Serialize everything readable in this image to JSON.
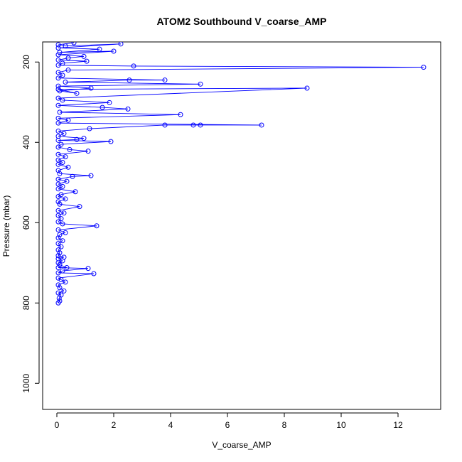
{
  "chart_data": {
    "type": "line",
    "title": "ATOM2 Southbound V_coarse_AMP",
    "xlabel": "V_coarse_AMP",
    "ylabel": "Pressure (mbar)",
    "xlim": [
      -0.5,
      13.5
    ],
    "ylim": [
      1065,
      150
    ],
    "y_reversed": true,
    "x_ticks": [
      0,
      2,
      4,
      6,
      8,
      10,
      12
    ],
    "y_ticks": [
      200,
      400,
      600,
      800,
      1000
    ],
    "grid": false,
    "legend": "none",
    "series_color": "#0000ff",
    "points": [
      [
        0.05,
        800
      ],
      [
        0.1,
        795
      ],
      [
        0.08,
        788
      ],
      [
        0.15,
        780
      ],
      [
        0.05,
        775
      ],
      [
        0.25,
        770
      ],
      [
        0.1,
        762
      ],
      [
        0.05,
        755
      ],
      [
        0.3,
        748
      ],
      [
        0.15,
        742
      ],
      [
        0.05,
        738
      ],
      [
        1.3,
        727
      ],
      [
        0.05,
        725
      ],
      [
        0.2,
        720
      ],
      [
        1.1,
        714
      ],
      [
        0.05,
        712
      ],
      [
        0.35,
        712
      ],
      [
        0.1,
        705
      ],
      [
        0.05,
        700
      ],
      [
        0.2,
        695
      ],
      [
        0.05,
        690
      ],
      [
        0.25,
        686
      ],
      [
        0.05,
        682
      ],
      [
        0.1,
        675
      ],
      [
        0.05,
        668
      ],
      [
        0.15,
        660
      ],
      [
        0.05,
        652
      ],
      [
        0.2,
        645
      ],
      [
        0.05,
        638
      ],
      [
        0.1,
        630
      ],
      [
        0.3,
        625
      ],
      [
        0.05,
        618
      ],
      [
        1.4,
        608
      ],
      [
        0.2,
        603
      ],
      [
        0.05,
        598
      ],
      [
        0.15,
        590
      ],
      [
        0.05,
        582
      ],
      [
        0.25,
        576
      ],
      [
        0.05,
        570
      ],
      [
        0.8,
        560
      ],
      [
        0.1,
        554
      ],
      [
        0.05,
        548
      ],
      [
        0.3,
        541
      ],
      [
        0.05,
        535
      ],
      [
        0.15,
        530
      ],
      [
        0.65,
        523
      ],
      [
        0.05,
        516
      ],
      [
        0.2,
        510
      ],
      [
        0.05,
        504
      ],
      [
        0.35,
        497
      ],
      [
        0.05,
        492
      ],
      [
        0.55,
        485
      ],
      [
        1.2,
        483
      ],
      [
        0.1,
        478
      ],
      [
        0.05,
        470
      ],
      [
        0.4,
        462
      ],
      [
        0.05,
        455
      ],
      [
        0.2,
        450
      ],
      [
        0.05,
        444
      ],
      [
        0.3,
        436
      ],
      [
        0.05,
        430
      ],
      [
        1.1,
        422
      ],
      [
        0.45,
        418
      ],
      [
        0.05,
        412
      ],
      [
        0.15,
        405
      ],
      [
        1.9,
        398
      ],
      [
        0.05,
        395
      ],
      [
        0.7,
        393
      ],
      [
        0.95,
        390
      ],
      [
        0.05,
        385
      ],
      [
        0.25,
        378
      ],
      [
        0.05,
        372
      ],
      [
        1.15,
        366
      ],
      [
        3.8,
        357
      ],
      [
        4.8,
        357
      ],
      [
        5.05,
        357
      ],
      [
        7.2,
        357
      ],
      [
        0.05,
        352
      ],
      [
        0.4,
        345
      ],
      [
        0.05,
        340
      ],
      [
        4.35,
        331
      ],
      [
        0.1,
        325
      ],
      [
        2.5,
        317
      ],
      [
        1.6,
        313
      ],
      [
        0.05,
        308
      ],
      [
        1.85,
        301
      ],
      [
        0.2,
        295
      ],
      [
        0.05,
        290
      ],
      [
        8.8,
        265
      ],
      [
        0.05,
        268
      ],
      [
        0.7,
        278
      ],
      [
        0.1,
        272
      ],
      [
        1.2,
        265
      ],
      [
        0.05,
        260
      ],
      [
        5.05,
        255
      ],
      [
        0.3,
        250
      ],
      [
        2.55,
        245
      ],
      [
        3.8,
        245
      ],
      [
        0.05,
        240
      ],
      [
        0.2,
        233
      ],
      [
        0.05,
        226
      ],
      [
        0.4,
        220
      ],
      [
        12.9,
        213
      ],
      [
        2.7,
        210
      ],
      [
        0.05,
        208
      ],
      [
        0.2,
        203
      ],
      [
        1.05,
        198
      ],
      [
        0.05,
        195
      ],
      [
        0.4,
        190
      ],
      [
        0.95,
        186
      ],
      [
        0.05,
        182
      ],
      [
        2.0,
        173
      ],
      [
        0.1,
        176
      ],
      [
        1.5,
        168
      ],
      [
        0.05,
        165
      ],
      [
        2.25,
        155
      ],
      [
        0.3,
        160
      ],
      [
        0.05,
        157
      ],
      [
        0.6,
        152
      ]
    ]
  }
}
